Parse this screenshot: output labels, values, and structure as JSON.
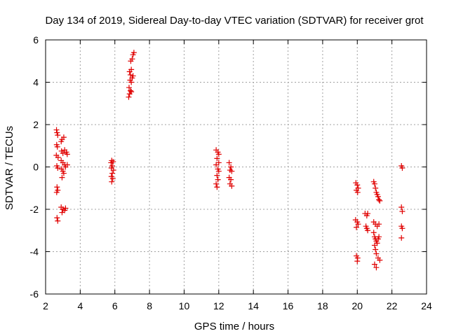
{
  "chart_data": {
    "type": "scatter",
    "title": "Day 134 of 2019, Sidereal Day-to-day VTEC variation (SDTVAR) for receiver grot",
    "xlabel": "GPS time / hours",
    "ylabel": "SDTVAR / TECUs",
    "xlim": [
      2,
      24
    ],
    "ylim": [
      -6,
      6
    ],
    "xticks": [
      2,
      4,
      6,
      8,
      10,
      12,
      14,
      16,
      18,
      20,
      22,
      24
    ],
    "yticks": [
      -6,
      -4,
      -2,
      0,
      2,
      4,
      6
    ],
    "grid": true,
    "marker": "plus",
    "marker_color": "#e00000",
    "series": [
      {
        "name": "SDTVAR",
        "points": [
          [
            2.63,
            1.75
          ],
          [
            2.66,
            1.62
          ],
          [
            2.7,
            1.5
          ],
          [
            2.64,
            1.05
          ],
          [
            2.68,
            0.95
          ],
          [
            2.62,
            0.55
          ],
          [
            2.72,
            0.45
          ],
          [
            2.65,
            0.05
          ],
          [
            2.7,
            -0.05
          ],
          [
            2.66,
            -0.95
          ],
          [
            2.7,
            -1.1
          ],
          [
            2.64,
            -1.2
          ],
          [
            2.66,
            -2.4
          ],
          [
            2.7,
            -2.55
          ],
          [
            2.9,
            1.2
          ],
          [
            2.95,
            1.3
          ],
          [
            3.05,
            1.4
          ],
          [
            2.92,
            0.75
          ],
          [
            3.0,
            0.65
          ],
          [
            3.1,
            0.8
          ],
          [
            3.2,
            0.7
          ],
          [
            3.25,
            0.6
          ],
          [
            2.9,
            0.3
          ],
          [
            3.0,
            0.2
          ],
          [
            3.1,
            0.1
          ],
          [
            3.15,
            0.0
          ],
          [
            3.25,
            0.1
          ],
          [
            2.92,
            -0.1
          ],
          [
            3.0,
            -0.2
          ],
          [
            3.05,
            -0.3
          ],
          [
            2.95,
            -0.5
          ],
          [
            2.9,
            -1.9
          ],
          [
            3.0,
            -2.0
          ],
          [
            3.1,
            -2.05
          ],
          [
            3.15,
            -1.95
          ],
          [
            2.95,
            -2.15
          ],
          [
            5.78,
            0.2
          ],
          [
            5.82,
            0.3
          ],
          [
            5.9,
            0.25
          ],
          [
            5.85,
            0.05
          ],
          [
            5.8,
            -0.05
          ],
          [
            5.92,
            -0.15
          ],
          [
            5.85,
            -0.3
          ],
          [
            5.8,
            -0.45
          ],
          [
            5.88,
            -0.55
          ],
          [
            5.82,
            -0.7
          ],
          [
            6.8,
            3.3
          ],
          [
            6.85,
            3.45
          ],
          [
            6.9,
            3.6
          ],
          [
            6.95,
            3.55
          ],
          [
            6.82,
            3.75
          ],
          [
            6.95,
            4.0
          ],
          [
            6.88,
            4.1
          ],
          [
            7.0,
            4.2
          ],
          [
            6.9,
            4.35
          ],
          [
            7.05,
            4.3
          ],
          [
            6.85,
            4.5
          ],
          [
            6.95,
            4.6
          ],
          [
            6.92,
            5.0
          ],
          [
            7.0,
            5.1
          ],
          [
            7.05,
            5.3
          ],
          [
            7.1,
            5.4
          ],
          [
            11.85,
            0.8
          ],
          [
            11.95,
            0.7
          ],
          [
            12.0,
            0.6
          ],
          [
            11.9,
            0.4
          ],
          [
            12.0,
            0.2
          ],
          [
            11.85,
            0.1
          ],
          [
            11.95,
            -0.1
          ],
          [
            12.0,
            -0.2
          ],
          [
            11.9,
            -0.4
          ],
          [
            11.95,
            -0.6
          ],
          [
            11.85,
            -0.8
          ],
          [
            11.9,
            -0.95
          ],
          [
            12.6,
            0.2
          ],
          [
            12.7,
            0.0
          ],
          [
            12.65,
            -0.15
          ],
          [
            12.75,
            -0.2
          ],
          [
            12.6,
            -0.5
          ],
          [
            12.7,
            -0.6
          ],
          [
            12.65,
            -0.8
          ],
          [
            12.75,
            -0.9
          ],
          [
            19.92,
            -0.75
          ],
          [
            20.0,
            -0.85
          ],
          [
            20.05,
            -1.0
          ],
          [
            19.95,
            -1.1
          ],
          [
            20.02,
            -1.2
          ],
          [
            19.9,
            -2.5
          ],
          [
            20.0,
            -2.6
          ],
          [
            20.05,
            -2.7
          ],
          [
            19.95,
            -2.85
          ],
          [
            19.95,
            -4.2
          ],
          [
            20.02,
            -4.3
          ],
          [
            20.0,
            -4.45
          ],
          [
            20.45,
            -2.2
          ],
          [
            20.55,
            -2.3
          ],
          [
            20.6,
            -2.2
          ],
          [
            20.5,
            -2.8
          ],
          [
            20.55,
            -2.9
          ],
          [
            20.6,
            -3.0
          ],
          [
            20.95,
            -0.7
          ],
          [
            21.0,
            -0.8
          ],
          [
            21.05,
            -1.0
          ],
          [
            21.1,
            -1.2
          ],
          [
            21.15,
            -1.3
          ],
          [
            21.2,
            -1.4
          ],
          [
            21.25,
            -1.55
          ],
          [
            21.3,
            -1.6
          ],
          [
            20.95,
            -2.6
          ],
          [
            21.05,
            -2.7
          ],
          [
            21.15,
            -2.8
          ],
          [
            21.25,
            -2.7
          ],
          [
            20.95,
            -3.1
          ],
          [
            21.0,
            -3.3
          ],
          [
            21.05,
            -3.4
          ],
          [
            21.1,
            -3.5
          ],
          [
            21.15,
            -3.6
          ],
          [
            21.2,
            -3.4
          ],
          [
            21.25,
            -3.3
          ],
          [
            21.0,
            -3.7
          ],
          [
            21.05,
            -3.9
          ],
          [
            21.1,
            -4.1
          ],
          [
            21.2,
            -4.3
          ],
          [
            21.3,
            -4.4
          ],
          [
            21.0,
            -4.6
          ],
          [
            21.1,
            -4.75
          ],
          [
            22.55,
            0.05
          ],
          [
            22.6,
            -0.05
          ],
          [
            22.55,
            -1.9
          ],
          [
            22.6,
            -2.1
          ],
          [
            22.55,
            -2.8
          ],
          [
            22.6,
            -2.9
          ],
          [
            22.55,
            -3.35
          ]
        ]
      }
    ]
  }
}
